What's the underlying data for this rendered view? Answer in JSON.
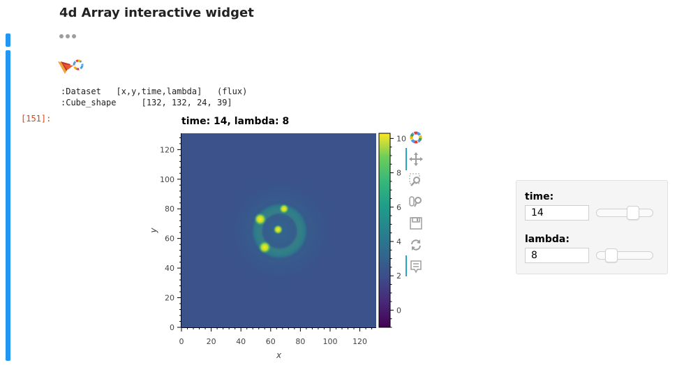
{
  "notebook": {
    "heading": "4d Array interactive widget",
    "prompt": "[151]:",
    "repr_lines": [
      ":Dataset   [x,y,time,lambda]   (flux)",
      ":Cube_shape     [132, 132, 24, 39]"
    ]
  },
  "plot": {
    "title": "time: 14, lambda: 8",
    "xlabel": "x",
    "ylabel": "y",
    "x_ticks": [
      "0",
      "20",
      "40",
      "60",
      "80",
      "100",
      "120"
    ],
    "y_ticks": [
      "0",
      "20",
      "40",
      "60",
      "80",
      "100",
      "120"
    ],
    "colorbar_ticks": [
      "0",
      "2",
      "4",
      "6",
      "8",
      "10"
    ],
    "colormap": "viridis"
  },
  "chart_data": {
    "type": "heatmap",
    "title": "time: 14, lambda: 8",
    "xlabel": "x",
    "ylabel": "y",
    "xlim": [
      0,
      131
    ],
    "ylim": [
      0,
      131
    ],
    "clim": [
      -1,
      10.3
    ],
    "colormap": "viridis",
    "background_level": 1.2,
    "features": [
      {
        "kind": "ring",
        "cx": 66,
        "cy": 65,
        "radius": 13,
        "value": 6
      },
      {
        "kind": "halo",
        "cx": 66,
        "cy": 65,
        "radius": 40,
        "value": 1.8
      },
      {
        "kind": "spot",
        "cx": 53,
        "cy": 73,
        "value": 10
      },
      {
        "kind": "spot",
        "cx": 56,
        "cy": 54,
        "value": 10
      },
      {
        "kind": "spot",
        "cx": 65,
        "cy": 66,
        "value": 8
      },
      {
        "kind": "spot",
        "cx": 69,
        "cy": 80,
        "value": 6
      }
    ]
  },
  "toolbar": {
    "tools": [
      "bokeh-logo-icon",
      "pan-icon",
      "box-zoom-icon",
      "wheel-zoom-icon",
      "save-icon",
      "reset-icon",
      "hover-icon"
    ]
  },
  "widgets": {
    "time": {
      "label": "time:",
      "value": "14",
      "fraction": 0.69
    },
    "lambda": {
      "label": "lambda:",
      "value": "8",
      "fraction": 0.21
    }
  },
  "colors": {
    "cell_bar": "#2196f3",
    "prompt": "#d84315",
    "toolbar_accent": "#26a6c2"
  }
}
